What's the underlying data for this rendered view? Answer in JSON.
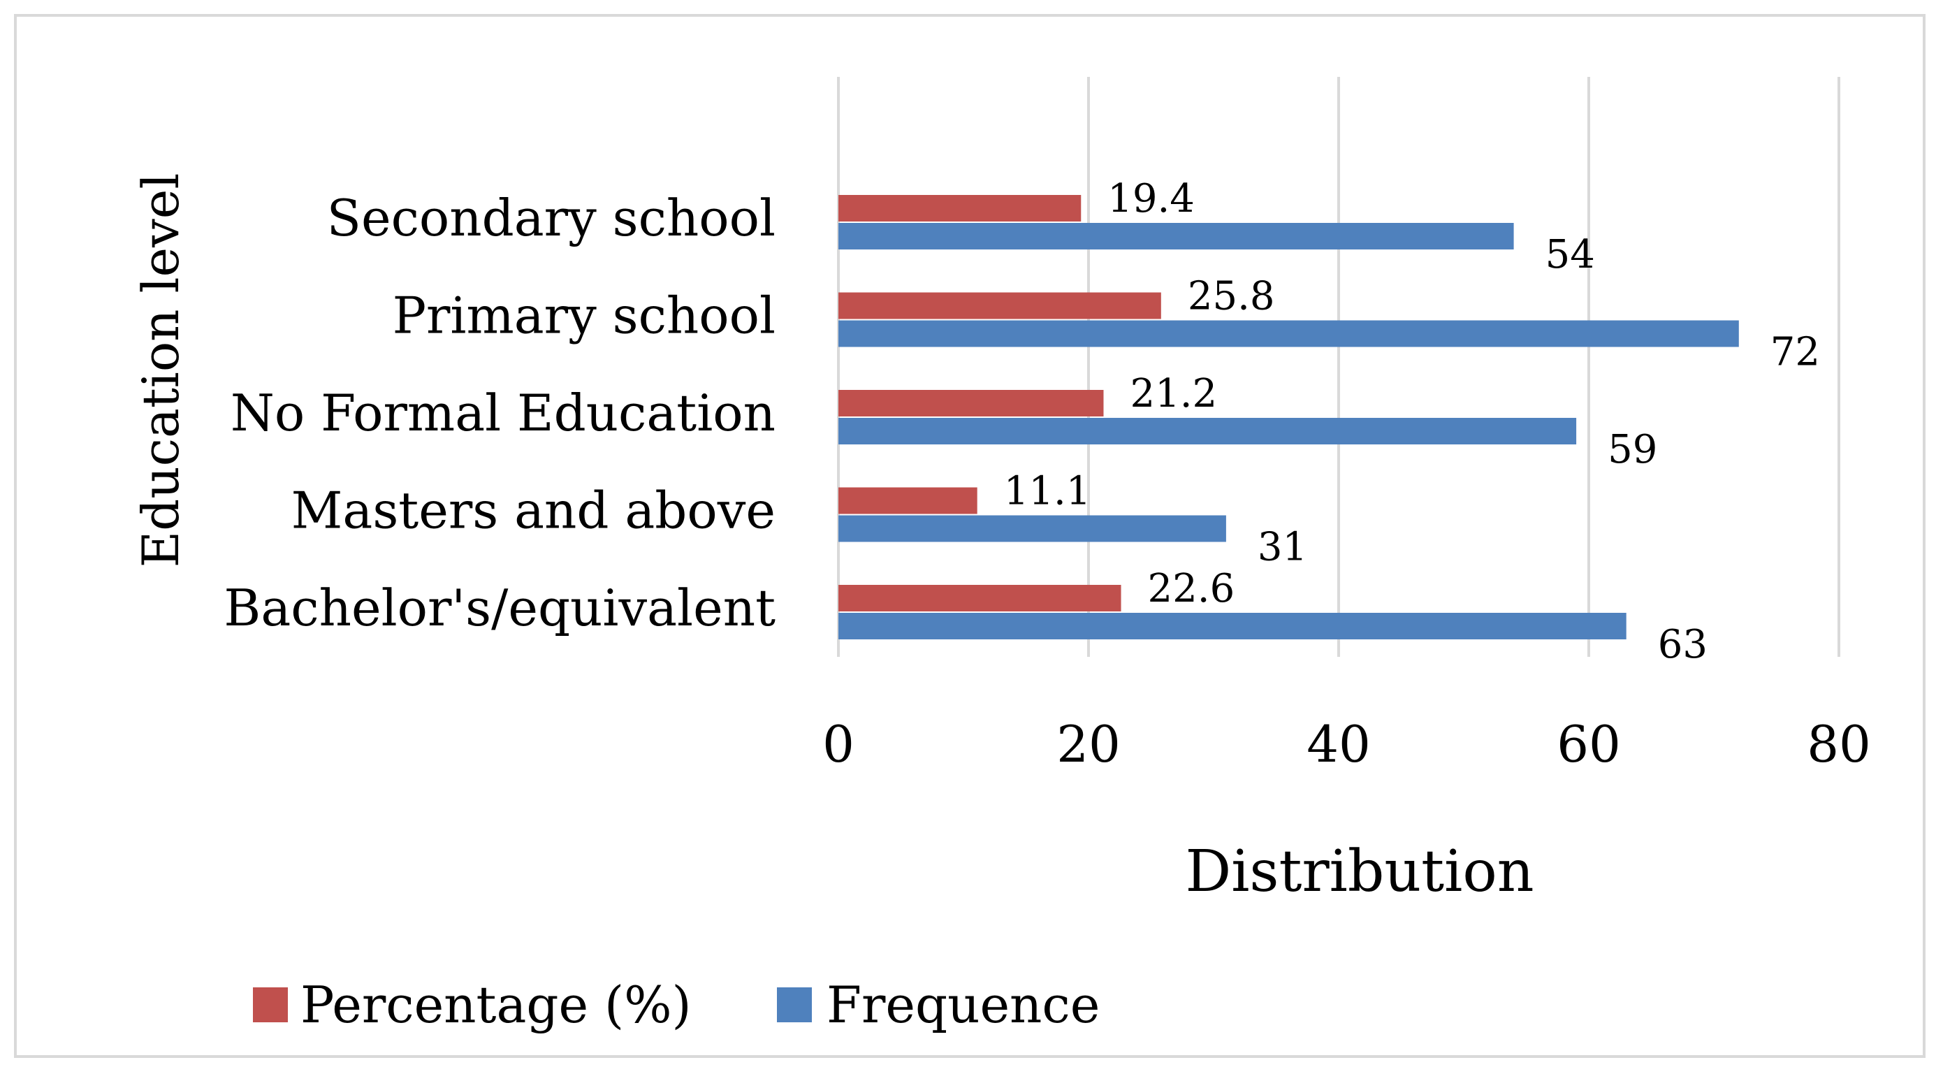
{
  "chart_data": {
    "type": "bar",
    "orientation": "horizontal",
    "title": "",
    "xlabel": "Distribution",
    "ylabel": "Education level",
    "xlim": [
      0,
      80
    ],
    "xticks": [
      0,
      20,
      40,
      60,
      80
    ],
    "grid": "vertical",
    "legend_position": "bottom-left",
    "categories": [
      "Secondary school",
      "Primary school",
      "No Formal Education",
      "Masters and above",
      "Bachelor's/equivalent"
    ],
    "series": [
      {
        "name": "Percentage (%)",
        "color": "#c0504d",
        "values": [
          19.4,
          25.8,
          21.2,
          11.1,
          22.6
        ]
      },
      {
        "name": "Frequence",
        "color": "#4f81bd",
        "values": [
          54,
          72,
          59,
          31,
          63
        ]
      }
    ]
  },
  "style": {
    "grid_color": "#d9d9d9",
    "frame_color": "#d9d9d9"
  }
}
